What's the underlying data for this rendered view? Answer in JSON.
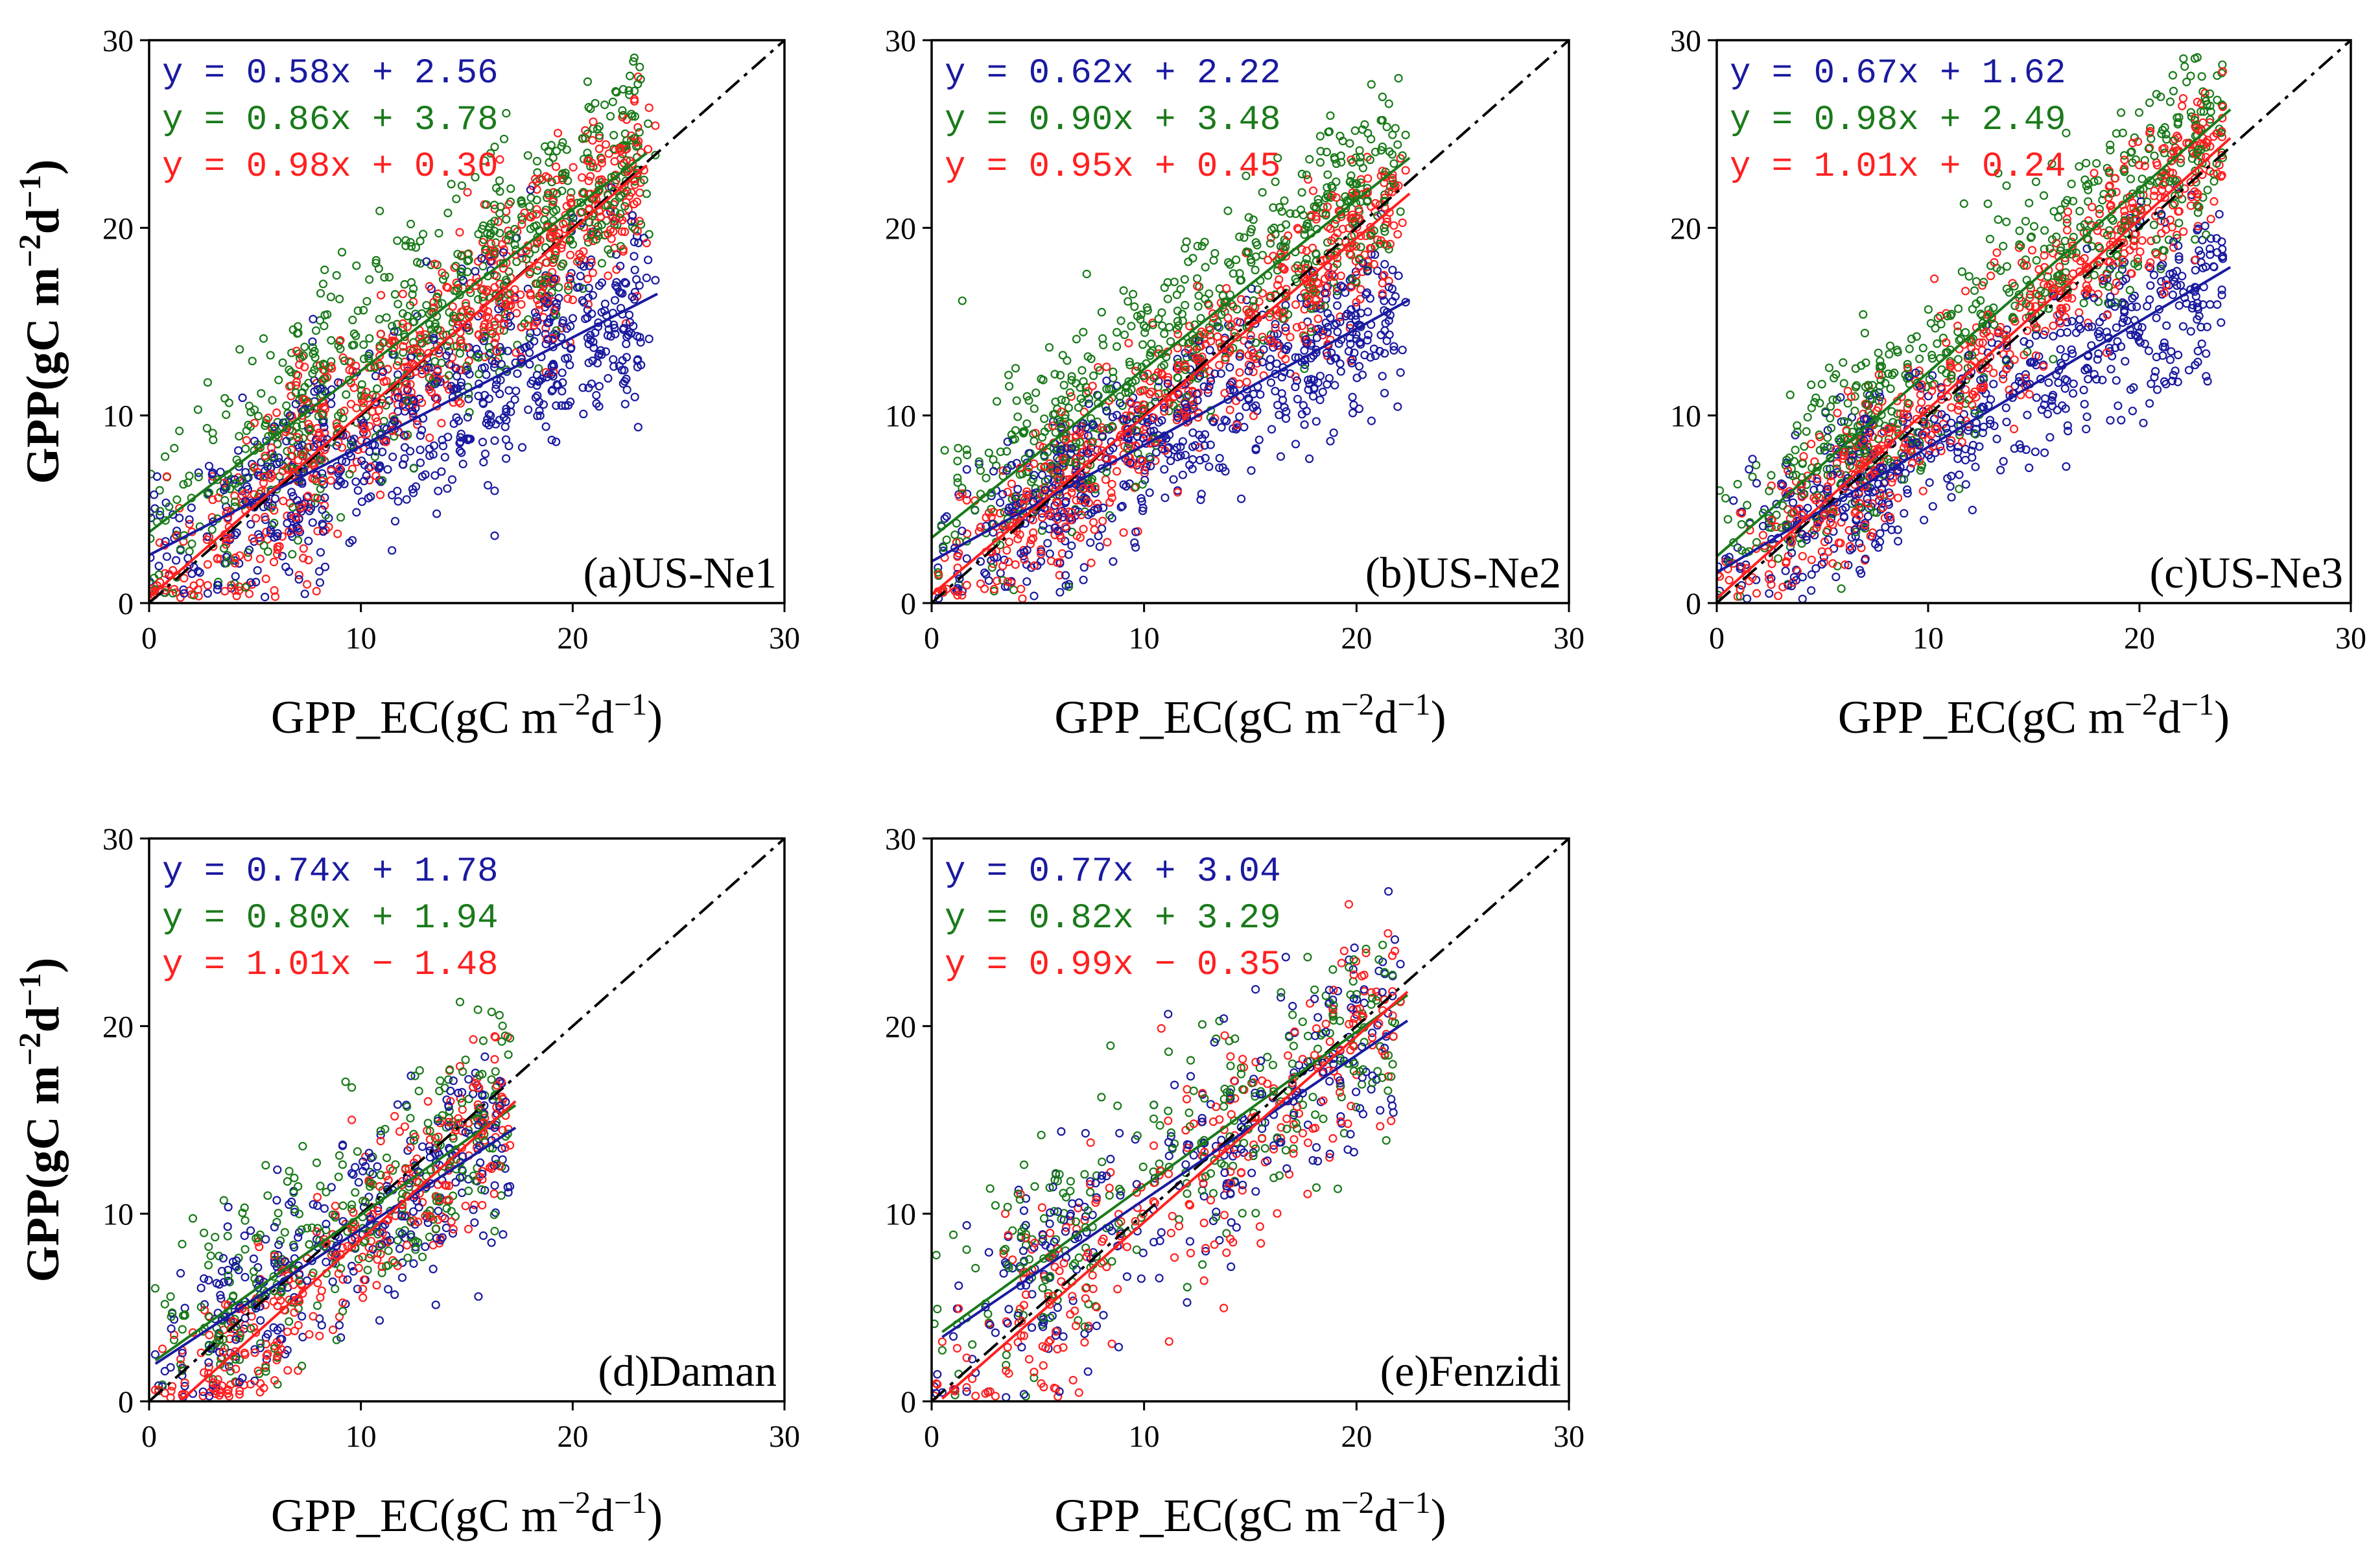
{
  "colors": {
    "model_a": "#1a1aa0",
    "model_b": "#1a7a1a",
    "model_c": "#ff2020",
    "one_to_one": "#000000"
  },
  "axis_text": {
    "xlabel_main": "GPP_EC(gC m",
    "xlabel_sup1": "−2",
    "xlabel_mid": "d",
    "xlabel_sup2": "−1",
    "xlabel_end": ")",
    "ylabel_main": "GPP(gC m",
    "ylabel_sup1": "−2",
    "ylabel_mid": "d",
    "ylabel_sup2": "−1",
    "ylabel_end": ")"
  },
  "chart_data": [
    {
      "type": "scatter",
      "title": "(a)US-Ne1",
      "xlim": [
        0,
        30
      ],
      "ylim": [
        0,
        30
      ],
      "xticks": [
        0,
        10,
        20,
        30
      ],
      "yticks": [
        0,
        10,
        20,
        30
      ],
      "point_count": 700,
      "series": [
        {
          "name": "model_a",
          "slope": 0.58,
          "intercept": 2.56,
          "equation": "y = 0.58x + 2.56",
          "fit_range": [
            0,
            24
          ],
          "scatter_sd": 2.6
        },
        {
          "name": "model_b",
          "slope": 0.86,
          "intercept": 3.78,
          "equation": "y = 0.86x + 3.78",
          "fit_range": [
            0,
            23.5
          ],
          "scatter_sd": 3.0
        },
        {
          "name": "model_c",
          "slope": 0.98,
          "intercept": 0.3,
          "equation": "y = 0.98x + 0.30",
          "fit_range": [
            0,
            23.5
          ],
          "scatter_sd": 2.4
        }
      ]
    },
    {
      "type": "scatter",
      "title": "(b)US-Ne2",
      "xlim": [
        0,
        30
      ],
      "ylim": [
        0,
        30
      ],
      "xticks": [
        0,
        10,
        20,
        30
      ],
      "yticks": [
        0,
        10,
        20,
        30
      ],
      "point_count": 600,
      "series": [
        {
          "name": "model_a",
          "slope": 0.62,
          "intercept": 2.22,
          "equation": "y = 0.62x + 2.22",
          "fit_range": [
            0,
            22.5
          ],
          "scatter_sd": 2.3
        },
        {
          "name": "model_b",
          "slope": 0.9,
          "intercept": 3.48,
          "equation": "y = 0.90x + 3.48",
          "fit_range": [
            0,
            22.5
          ],
          "scatter_sd": 2.6
        },
        {
          "name": "model_c",
          "slope": 0.95,
          "intercept": 0.45,
          "equation": "y = 0.95x + 0.45",
          "fit_range": [
            0,
            22.5
          ],
          "scatter_sd": 2.0
        }
      ]
    },
    {
      "type": "scatter",
      "title": "(c)US-Ne3",
      "xlim": [
        0,
        30
      ],
      "ylim": [
        0,
        30
      ],
      "xticks": [
        0,
        10,
        20,
        30
      ],
      "yticks": [
        0,
        10,
        20,
        30
      ],
      "point_count": 600,
      "series": [
        {
          "name": "model_a",
          "slope": 0.67,
          "intercept": 1.62,
          "equation": "y = 0.67x + 1.62",
          "fit_range": [
            0,
            24.3
          ],
          "scatter_sd": 2.2
        },
        {
          "name": "model_b",
          "slope": 0.98,
          "intercept": 2.49,
          "equation": "y = 0.98x + 2.49",
          "fit_range": [
            0,
            24.3
          ],
          "scatter_sd": 2.5
        },
        {
          "name": "model_c",
          "slope": 1.01,
          "intercept": 0.24,
          "equation": "y = 1.01x + 0.24",
          "fit_range": [
            0,
            24.3
          ],
          "scatter_sd": 2.0
        }
      ]
    },
    {
      "type": "scatter",
      "title": "(d)Daman",
      "xlim": [
        0,
        30
      ],
      "ylim": [
        0,
        30
      ],
      "xticks": [
        0,
        10,
        20,
        30
      ],
      "yticks": [
        0,
        10,
        20,
        30
      ],
      "point_count": 320,
      "series": [
        {
          "name": "model_a",
          "slope": 0.74,
          "intercept": 1.78,
          "equation": "y = 0.74x + 1.78",
          "fit_range": [
            0.3,
            17.3
          ],
          "scatter_sd": 2.5
        },
        {
          "name": "model_b",
          "slope": 0.8,
          "intercept": 1.94,
          "equation": "y = 0.80x + 1.94",
          "fit_range": [
            0.3,
            17.3
          ],
          "scatter_sd": 2.6
        },
        {
          "name": "model_c",
          "slope": 1.01,
          "intercept": -1.48,
          "equation": "y = 1.01x − 1.48",
          "fit_range": [
            1.5,
            17.3
          ],
          "scatter_sd": 2.2
        }
      ]
    },
    {
      "type": "scatter",
      "title": "(e)Fenzidi",
      "xlim": [
        0,
        30
      ],
      "ylim": [
        0,
        30
      ],
      "xticks": [
        0,
        10,
        20,
        30
      ],
      "yticks": [
        0,
        10,
        20,
        30
      ],
      "point_count": 280,
      "series": [
        {
          "name": "model_a",
          "slope": 0.77,
          "intercept": 3.04,
          "equation": "y = 0.77x + 3.04",
          "fit_range": [
            0.5,
            22.4
          ],
          "scatter_sd": 2.8
        },
        {
          "name": "model_b",
          "slope": 0.82,
          "intercept": 3.29,
          "equation": "y = 0.82x + 3.29",
          "fit_range": [
            0.5,
            22.4
          ],
          "scatter_sd": 2.8
        },
        {
          "name": "model_c",
          "slope": 0.99,
          "intercept": -0.35,
          "equation": "y = 0.99x − 0.35",
          "fit_range": [
            0.5,
            22.4
          ],
          "scatter_sd": 3.0
        }
      ]
    }
  ]
}
